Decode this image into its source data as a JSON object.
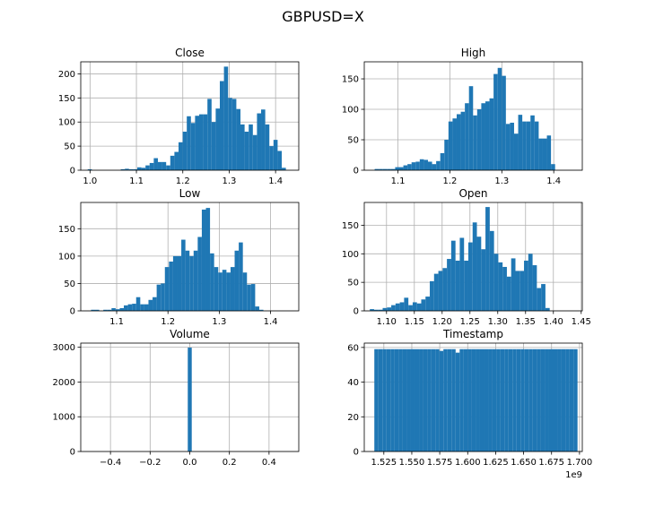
{
  "figure_title": "GBPUSD=X",
  "colors": {
    "bar": "#1f77b4",
    "grid": "#b0b0b0",
    "axis": "#000000"
  },
  "chart_data": [
    {
      "type": "bar",
      "title": "Close",
      "xlim": [
        0.98,
        1.45
      ],
      "ylim": [
        0,
        225
      ],
      "xticks": [
        1.0,
        1.1,
        1.2,
        1.3,
        1.4
      ],
      "xtick_labels": [
        "1.0",
        "1.1",
        "1.2",
        "1.3",
        "1.4"
      ],
      "yticks": [
        0,
        50,
        100,
        150,
        200
      ],
      "ytick_labels": [
        "0",
        "50",
        "100",
        "150",
        "200"
      ],
      "bin_start": 0.995,
      "bin_width": 0.0089,
      "values": [
        2,
        0,
        0,
        0,
        0,
        0,
        0,
        0,
        2,
        3,
        2,
        2,
        6,
        5,
        10,
        15,
        25,
        17,
        17,
        10,
        30,
        38,
        58,
        80,
        112,
        98,
        113,
        116,
        116,
        148,
        100,
        128,
        185,
        215,
        150,
        148,
        127,
        95,
        80,
        95,
        73,
        118,
        126,
        95,
        50,
        63,
        40,
        5
      ]
    },
    {
      "type": "bar",
      "title": "High",
      "xlim": [
        1.035,
        1.455
      ],
      "ylim": [
        0,
        178
      ],
      "xticks": [
        1.1,
        1.2,
        1.3,
        1.4
      ],
      "xtick_labels": [
        "1.1",
        "1.2",
        "1.3",
        "1.4"
      ],
      "yticks": [
        0,
        50,
        100,
        150
      ],
      "ytick_labels": [
        "0",
        "50",
        "100",
        "150"
      ],
      "bin_start": 1.055,
      "bin_width": 0.0079,
      "values": [
        2,
        2,
        2,
        2,
        2,
        5,
        5,
        8,
        10,
        13,
        14,
        18,
        17,
        14,
        10,
        15,
        28,
        50,
        80,
        85,
        92,
        96,
        110,
        138,
        90,
        100,
        110,
        113,
        118,
        158,
        168,
        155,
        76,
        78,
        60,
        91,
        80,
        80,
        90,
        80,
        52,
        52,
        57,
        10
      ]
    },
    {
      "type": "bar",
      "title": "Low",
      "xlim": [
        1.03,
        1.455
      ],
      "ylim": [
        0,
        198
      ],
      "xticks": [
        1.1,
        1.2,
        1.3,
        1.4
      ],
      "xtick_labels": [
        "1.1",
        "1.2",
        "1.3",
        "1.4"
      ],
      "yticks": [
        0,
        50,
        100,
        150
      ],
      "ytick_labels": [
        "0",
        "50",
        "100",
        "150"
      ],
      "bin_start": 1.05,
      "bin_width": 0.008,
      "values": [
        2,
        2,
        0,
        2,
        2,
        5,
        3,
        5,
        10,
        12,
        13,
        25,
        12,
        12,
        20,
        25,
        48,
        50,
        80,
        90,
        100,
        100,
        130,
        110,
        100,
        110,
        135,
        185,
        188,
        105,
        80,
        70,
        75,
        70,
        80,
        110,
        125,
        70,
        48,
        49,
        8,
        2
      ]
    },
    {
      "type": "bar",
      "title": "Open",
      "xlim": [
        1.06,
        1.452
      ],
      "ylim": [
        0,
        190
      ],
      "xticks": [
        1.1,
        1.15,
        1.2,
        1.25,
        1.3,
        1.35,
        1.4,
        1.45
      ],
      "xtick_labels": [
        "1.10",
        "1.15",
        "1.20",
        "1.25",
        "1.30",
        "1.35",
        "1.40",
        "1.45"
      ],
      "yticks": [
        0,
        50,
        100,
        150
      ],
      "ytick_labels": [
        "0",
        "50",
        "100",
        "150"
      ],
      "bin_start": 1.07,
      "bin_width": 0.0077,
      "values": [
        3,
        2,
        2,
        5,
        6,
        10,
        13,
        15,
        23,
        10,
        15,
        13,
        20,
        25,
        52,
        65,
        70,
        75,
        91,
        123,
        88,
        128,
        88,
        120,
        155,
        130,
        108,
        182,
        140,
        100,
        85,
        77,
        60,
        92,
        70,
        70,
        88,
        100,
        80,
        40,
        47,
        5
      ]
    },
    {
      "type": "bar",
      "title": "Volume",
      "xlim": [
        -0.55,
        0.55
      ],
      "ylim": [
        0,
        3120
      ],
      "xticks": [
        -0.4,
        -0.2,
        0.0,
        0.2,
        0.4
      ],
      "xtick_labels": [
        "−0.4",
        "−0.2",
        "0.0",
        "0.2",
        "0.4"
      ],
      "yticks": [
        0,
        1000,
        2000,
        3000
      ],
      "ytick_labels": [
        "0",
        "1000",
        "2000",
        "3000"
      ],
      "bin_start": -0.01,
      "bin_width": 0.02,
      "values": [
        2990
      ]
    },
    {
      "type": "bar",
      "title": "Timestamp",
      "xlim": [
        1.5075,
        1.7025
      ],
      "ylim": [
        0,
        62.5
      ],
      "xticks": [
        1.525,
        1.55,
        1.575,
        1.6,
        1.625,
        1.65,
        1.675,
        1.7
      ],
      "xtick_labels": [
        "1.525",
        "1.550",
        "1.575",
        "1.600",
        "1.625",
        "1.650",
        "1.675",
        "1.700"
      ],
      "yticks": [
        0,
        20,
        40,
        60
      ],
      "ytick_labels": [
        "0",
        "20",
        "40",
        "60"
      ],
      "offset_label": "1e9",
      "bin_start": 1.5165,
      "bin_width": 0.0036346,
      "values": [
        59,
        59,
        59,
        59,
        59,
        59,
        59,
        59,
        59,
        59,
        59,
        59,
        59,
        59,
        59,
        59,
        58,
        59,
        59,
        59,
        57,
        59,
        59,
        59,
        59,
        59,
        59,
        59,
        59,
        59,
        59,
        59,
        59,
        59,
        59,
        59,
        59,
        59,
        59,
        59,
        59,
        59,
        59,
        59,
        59,
        59,
        59,
        59,
        59,
        59
      ]
    }
  ]
}
